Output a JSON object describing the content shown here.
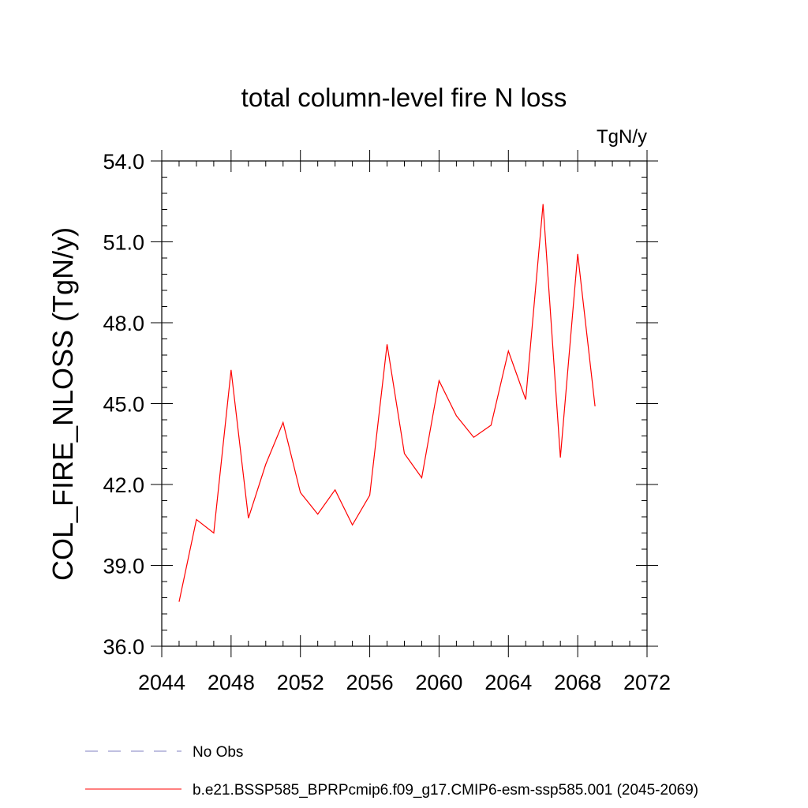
{
  "chart_data": {
    "type": "line",
    "title": "total column-level fire N loss",
    "units_label": "TgN/y",
    "ylabel": "COL_FIRE_NLOSS  (TgN/y)",
    "xlabel": "",
    "xlim": [
      2044,
      2072
    ],
    "ylim": [
      36.0,
      54.0
    ],
    "x_ticks": [
      "2044",
      "2048",
      "2052",
      "2056",
      "2060",
      "2064",
      "2068",
      "2072"
    ],
    "y_ticks": [
      "36.0",
      "39.0",
      "42.0",
      "45.0",
      "48.0",
      "51.0",
      "54.0"
    ],
    "grid": false,
    "legend_position": "bottom",
    "series": [
      {
        "name": "b.e21.BSSP585_BPRPcmip6.f09_g17.CMIP6-esm-ssp585.001 (2045-2069)",
        "color": "#ff0000",
        "style": "solid",
        "x": [
          2045,
          2046,
          2047,
          2048,
          2049,
          2050,
          2051,
          2052,
          2053,
          2054,
          2055,
          2056,
          2057,
          2058,
          2059,
          2060,
          2061,
          2062,
          2063,
          2064,
          2065,
          2066,
          2067,
          2068,
          2069
        ],
        "values": [
          37.65,
          40.7,
          40.2,
          46.25,
          40.75,
          42.75,
          44.3,
          41.7,
          40.9,
          41.8,
          40.5,
          41.6,
          47.2,
          43.15,
          42.25,
          45.85,
          44.55,
          43.75,
          44.2,
          46.95,
          45.15,
          52.4,
          43.0,
          50.55,
          44.9
        ]
      }
    ],
    "legend": [
      {
        "label": "No Obs",
        "color": "#8080c0",
        "style": "dashed"
      },
      {
        "label": "b.e21.BSSP585_BPRPcmip6.f09_g17.CMIP6-esm-ssp585.001 (2045-2069)",
        "color": "#ff0000",
        "style": "solid"
      }
    ]
  }
}
